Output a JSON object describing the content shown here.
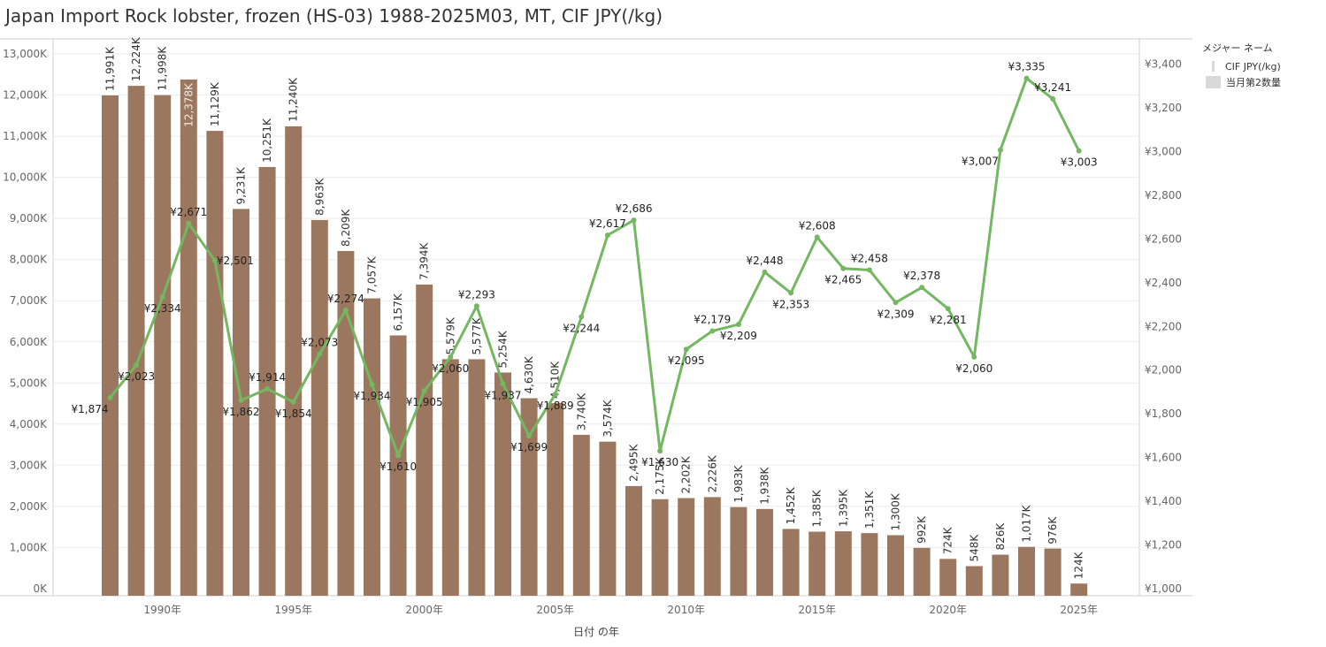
{
  "title": "Japan Import Rock lobster, frozen (HS-03) 1988-2025M03, MT, CIF JPY(/kg)",
  "legend": {
    "title": "メジャー ネーム",
    "items": [
      {
        "label": "CIF JPY(/kg)",
        "kind": "line"
      },
      {
        "label": "当月第2数量",
        "kind": "bar"
      }
    ]
  },
  "colors": {
    "bar": "#9c775f",
    "line": "#73b761",
    "grid": "#ebebeb",
    "axis": "#cfcfcf"
  },
  "chart_data": {
    "type": "bar+line",
    "title": "Japan Import Rock lobster, frozen (HS-03) 1988-2025M03, MT, CIF JPY(/kg)",
    "xlabel": "日付 の年",
    "ylabel_left": "",
    "ylabel_right": "",
    "x": [
      1988,
      1989,
      1990,
      1991,
      1992,
      1993,
      1994,
      1995,
      1996,
      1997,
      1998,
      1999,
      2000,
      2001,
      2002,
      2003,
      2004,
      2005,
      2006,
      2007,
      2008,
      2009,
      2010,
      2011,
      2012,
      2013,
      2014,
      2015,
      2016,
      2017,
      2018,
      2019,
      2020,
      2021,
      2022,
      2023,
      2024,
      2025
    ],
    "x_ticks": [
      {
        "year": 1990,
        "label": "1990年"
      },
      {
        "year": 1995,
        "label": "1995年"
      },
      {
        "year": 2000,
        "label": "2000年"
      },
      {
        "year": 2005,
        "label": "2005年"
      },
      {
        "year": 2010,
        "label": "2010年"
      },
      {
        "year": 2015,
        "label": "2015年"
      },
      {
        "year": 2020,
        "label": "2020年"
      },
      {
        "year": 2025,
        "label": "2025年"
      }
    ],
    "left_axis": {
      "ylim": [
        0,
        13000
      ],
      "ticks": [
        {
          "v": 0,
          "label": "0K"
        },
        {
          "v": 1000,
          "label": "1,000K"
        },
        {
          "v": 2000,
          "label": "2,000K"
        },
        {
          "v": 3000,
          "label": "3,000K"
        },
        {
          "v": 4000,
          "label": "4,000K"
        },
        {
          "v": 5000,
          "label": "5,000K"
        },
        {
          "v": 6000,
          "label": "6,000K"
        },
        {
          "v": 7000,
          "label": "7,000K"
        },
        {
          "v": 8000,
          "label": "8,000K"
        },
        {
          "v": 9000,
          "label": "9,000K"
        },
        {
          "v": 10000,
          "label": "10,000K"
        },
        {
          "v": 11000,
          "label": "11,000K"
        },
        {
          "v": 12000,
          "label": "12,000K"
        },
        {
          "v": 13000,
          "label": "13,000K"
        }
      ]
    },
    "right_axis": {
      "ylim": [
        1000,
        3500
      ],
      "ticks": [
        {
          "v": 1000,
          "label": "¥1,000"
        },
        {
          "v": 1200,
          "label": "¥1,200"
        },
        {
          "v": 1400,
          "label": "¥1,400"
        },
        {
          "v": 1600,
          "label": "¥1,600"
        },
        {
          "v": 1800,
          "label": "¥1,800"
        },
        {
          "v": 2000,
          "label": "¥2,000"
        },
        {
          "v": 2200,
          "label": "¥2,200"
        },
        {
          "v": 2400,
          "label": "¥2,400"
        },
        {
          "v": 2600,
          "label": "¥2,600"
        },
        {
          "v": 2800,
          "label": "¥2,800"
        },
        {
          "v": 3000,
          "label": "¥3,000"
        },
        {
          "v": 3200,
          "label": "¥3,200"
        },
        {
          "v": 3400,
          "label": "¥3,400"
        }
      ]
    },
    "series": [
      {
        "name": "当月第2数量",
        "kind": "bar",
        "axis": "left",
        "values": [
          11991,
          12224,
          11998,
          12378,
          11129,
          9231,
          10251,
          11240,
          8963,
          8209,
          7057,
          6157,
          7394,
          5579,
          5577,
          5254,
          4630,
          4510,
          3740,
          3574,
          2495,
          2175,
          2202,
          2226,
          1983,
          1938,
          1452,
          1385,
          1395,
          1351,
          1300,
          992,
          724,
          548,
          826,
          1017,
          976,
          124
        ],
        "labels": [
          "11,991K",
          "12,224K",
          "11,998K",
          "12,378K",
          "11,129K",
          "9,231K",
          "10,251K",
          "11,240K",
          "8,963K",
          "8,209K",
          "7,057K",
          "6,157K",
          "7,394K",
          "5,579K",
          "5,577K",
          "5,254K",
          "4,630K",
          "4,510K",
          "3,740K",
          "3,574K",
          "2,495K",
          "2,175K",
          "2,202K",
          "2,226K",
          "1,983K",
          "1,938K",
          "1,452K",
          "1,385K",
          "1,395K",
          "1,351K",
          "1,300K",
          "992K",
          "724K",
          "548K",
          "826K",
          "1,017K",
          "976K",
          "124K"
        ]
      },
      {
        "name": "CIF JPY(/kg)",
        "kind": "line",
        "axis": "right",
        "values": [
          1874,
          2023,
          2334,
          2671,
          2501,
          1862,
          1914,
          1854,
          2073,
          2274,
          1934,
          1610,
          1905,
          2060,
          2293,
          1937,
          1699,
          1889,
          2244,
          2617,
          2686,
          1630,
          2095,
          2179,
          2209,
          2448,
          2353,
          2608,
          2465,
          2458,
          2309,
          2378,
          2281,
          2060,
          3007,
          3335,
          3241,
          3003
        ],
        "labels": [
          "¥1,874",
          "¥2,023",
          "¥2,334",
          "¥2,671",
          "¥2,501",
          "¥1,862",
          "¥1,914",
          "¥1,854",
          "¥2,073",
          "¥2,274",
          "¥1,934",
          "¥1,610",
          "¥1,905",
          "¥2,060",
          "¥2,293",
          "¥1,937",
          "¥1,699",
          "¥1,889",
          "¥2,244",
          "¥2,617",
          "¥2,686",
          "¥1,630",
          "¥2,095",
          "¥2,179",
          "¥2,209",
          "¥2,448",
          "¥2,353",
          "¥2,608",
          "¥2,465",
          "¥2,458",
          "¥2,309",
          "¥2,378",
          "¥2,281",
          "¥2,060",
          "¥3,007",
          "¥3,335",
          "¥3,241",
          "¥3,003"
        ],
        "label_positions": [
          "left",
          "below",
          "below",
          "above",
          "right",
          "below",
          "above",
          "below",
          "above",
          "above",
          "below",
          "below",
          "below",
          "below",
          "above",
          "below",
          "below",
          "below",
          "below",
          "above",
          "above",
          "below",
          "below",
          "above",
          "below",
          "above",
          "below",
          "above",
          "below",
          "above",
          "below",
          "above",
          "below",
          "below",
          "left",
          "above",
          "above",
          "below"
        ]
      }
    ],
    "grid": true,
    "legend_position": "top-right"
  }
}
